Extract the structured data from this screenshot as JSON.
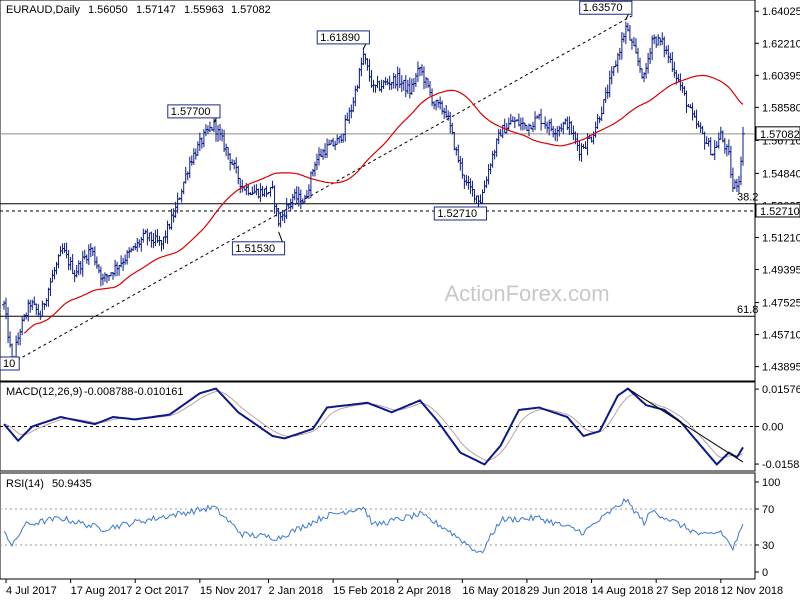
{
  "header": {
    "symbol": "EURAUD,Daily",
    "open": "1.56050",
    "high": "1.57147",
    "low": "1.55963",
    "close": "1.57082"
  },
  "watermark": "ActionForex.com",
  "colors": {
    "candle": "#0a1a8a",
    "ma": "#dd0000",
    "macd": "#0a1a8a",
    "signal": "#c0a0a0",
    "rsi": "#3a78d8",
    "frame": "#000000",
    "hline": "#000000"
  },
  "chart_data": [
    {
      "type": "candlestick",
      "name": "EURAUD,Daily",
      "x_ticks": [
        "4 Jul 2017",
        "17 Aug 2017",
        "2 Oct 2017",
        "15 Nov 2017",
        "2 Jan 2018",
        "15 Feb 2018",
        "2 Apr 2018",
        "16 May 2018",
        "29 Jun 2018",
        "14 Aug 2018",
        "27 Sep 2018",
        "12 Nov 2018"
      ],
      "y_ticks": [
        "1.64025",
        "1.62210",
        "1.60395",
        "1.58580",
        "1.56710",
        "1.54840",
        "1.53025",
        "1.51210",
        "1.49395",
        "1.47525",
        "1.45710",
        "1.43895"
      ],
      "ylim": [
        1.4325,
        1.6449
      ],
      "last_price_label": "1.57082",
      "support_label": "1.52710",
      "swing_labels": [
        {
          "text": "1.57700",
          "date": "2017-11-24",
          "price": 1.577
        },
        {
          "text": "1.51530",
          "date": "2018-01-09",
          "price": 1.5153
        },
        {
          "text": "1.61890",
          "date": "2018-03-08",
          "price": 1.6189
        },
        {
          "text": "1.52710",
          "date": "2018-05-29",
          "price": 1.5271
        },
        {
          "text": "1.63570",
          "date": "2018-09-06",
          "price": 1.6357
        },
        {
          "text": "10",
          "date": "2017-07-07",
          "price": 1.441
        }
      ],
      "fib_levels": [
        {
          "label": "38.2",
          "price": 1.5312
        },
        {
          "label": "61.8",
          "price": 1.4675
        }
      ],
      "horizontal_lines": [
        1.5708,
        1.5312,
        1.5271,
        1.4675
      ],
      "trendline": {
        "from": {
          "date": "2017-07-07",
          "price": 1.441
        },
        "to": {
          "date": "2018-09-06",
          "price": 1.6357
        }
      },
      "anchors": [
        {
          "date": "2017-07-03",
          "price": 1.474
        },
        {
          "date": "2017-07-07",
          "price": 1.441
        },
        {
          "date": "2017-07-13",
          "price": 1.46
        },
        {
          "date": "2017-07-20",
          "price": 1.475
        },
        {
          "date": "2017-07-27",
          "price": 1.468
        },
        {
          "date": "2017-08-03",
          "price": 1.487
        },
        {
          "date": "2017-08-11",
          "price": 1.505
        },
        {
          "date": "2017-08-21",
          "price": 1.492
        },
        {
          "date": "2017-08-31",
          "price": 1.506
        },
        {
          "date": "2017-09-08",
          "price": 1.488
        },
        {
          "date": "2017-09-18",
          "price": 1.495
        },
        {
          "date": "2017-09-28",
          "price": 1.504
        },
        {
          "date": "2017-10-09",
          "price": 1.513
        },
        {
          "date": "2017-10-19",
          "price": 1.508
        },
        {
          "date": "2017-10-30",
          "price": 1.528
        },
        {
          "date": "2017-11-08",
          "price": 1.555
        },
        {
          "date": "2017-11-17",
          "price": 1.569
        },
        {
          "date": "2017-11-24",
          "price": 1.576
        },
        {
          "date": "2017-12-04",
          "price": 1.562
        },
        {
          "date": "2017-12-14",
          "price": 1.541
        },
        {
          "date": "2017-12-22",
          "price": 1.538
        },
        {
          "date": "2018-01-04",
          "price": 1.538
        },
        {
          "date": "2018-01-09",
          "price": 1.521
        },
        {
          "date": "2018-01-18",
          "price": 1.535
        },
        {
          "date": "2018-01-26",
          "price": 1.533
        },
        {
          "date": "2018-02-02",
          "price": 1.555
        },
        {
          "date": "2018-02-09",
          "price": 1.562
        },
        {
          "date": "2018-02-20",
          "price": 1.567
        },
        {
          "date": "2018-02-28",
          "price": 1.585
        },
        {
          "date": "2018-03-08",
          "price": 1.615
        },
        {
          "date": "2018-03-15",
          "price": 1.596
        },
        {
          "date": "2018-03-22",
          "price": 1.599
        },
        {
          "date": "2018-04-02",
          "price": 1.602
        },
        {
          "date": "2018-04-10",
          "price": 1.595
        },
        {
          "date": "2018-04-17",
          "price": 1.608
        },
        {
          "date": "2018-04-26",
          "price": 1.588
        },
        {
          "date": "2018-05-04",
          "price": 1.583
        },
        {
          "date": "2018-05-11",
          "price": 1.56
        },
        {
          "date": "2018-05-18",
          "price": 1.542
        },
        {
          "date": "2018-05-29",
          "price": 1.533
        },
        {
          "date": "2018-06-05",
          "price": 1.555
        },
        {
          "date": "2018-06-12",
          "price": 1.572
        },
        {
          "date": "2018-06-20",
          "price": 1.578
        },
        {
          "date": "2018-06-29",
          "price": 1.575
        },
        {
          "date": "2018-07-09",
          "price": 1.58
        },
        {
          "date": "2018-07-18",
          "price": 1.573
        },
        {
          "date": "2018-07-27",
          "price": 1.577
        },
        {
          "date": "2018-08-06",
          "price": 1.562
        },
        {
          "date": "2018-08-14",
          "price": 1.569
        },
        {
          "date": "2018-08-22",
          "price": 1.588
        },
        {
          "date": "2018-08-30",
          "price": 1.611
        },
        {
          "date": "2018-09-06",
          "price": 1.631
        },
        {
          "date": "2018-09-12",
          "price": 1.618
        },
        {
          "date": "2018-09-19",
          "price": 1.602
        },
        {
          "date": "2018-09-25",
          "price": 1.625
        },
        {
          "date": "2018-10-02",
          "price": 1.622
        },
        {
          "date": "2018-10-09",
          "price": 1.61
        },
        {
          "date": "2018-10-16",
          "price": 1.595
        },
        {
          "date": "2018-10-23",
          "price": 1.58
        },
        {
          "date": "2018-10-30",
          "price": 1.57
        },
        {
          "date": "2018-11-06",
          "price": 1.56
        },
        {
          "date": "2018-11-12",
          "price": 1.57
        },
        {
          "date": "2018-11-16",
          "price": 1.558
        },
        {
          "date": "2018-11-20",
          "price": 1.54
        },
        {
          "date": "2018-11-23",
          "price": 1.545
        },
        {
          "date": "2018-11-27",
          "price": 1.5708
        }
      ]
    },
    {
      "type": "line",
      "name": "MACD(12,26,9)",
      "values_text": [
        "-0.008788",
        "-0.010161"
      ],
      "y_ticks": [
        "0.015762",
        "0.00",
        "-0.015834"
      ],
      "ylim": [
        -0.0175,
        0.0175
      ],
      "zero_line": 0,
      "macd_anchors": [
        {
          "date": "2017-07-03",
          "value": 0.001
        },
        {
          "date": "2017-07-12",
          "value": -0.006
        },
        {
          "date": "2017-07-22",
          "value": 0.0
        },
        {
          "date": "2017-08-10",
          "value": 0.004
        },
        {
          "date": "2017-09-04",
          "value": 0.001
        },
        {
          "date": "2017-09-15",
          "value": 0.004
        },
        {
          "date": "2017-10-02",
          "value": 0.003
        },
        {
          "date": "2017-10-25",
          "value": 0.005
        },
        {
          "date": "2017-11-15",
          "value": 0.014
        },
        {
          "date": "2017-11-27",
          "value": 0.016
        },
        {
          "date": "2017-12-12",
          "value": 0.006
        },
        {
          "date": "2018-01-04",
          "value": -0.004
        },
        {
          "date": "2018-01-12",
          "value": -0.005
        },
        {
          "date": "2018-02-01",
          "value": -0.001
        },
        {
          "date": "2018-02-12",
          "value": 0.008
        },
        {
          "date": "2018-03-12",
          "value": 0.01
        },
        {
          "date": "2018-03-28",
          "value": 0.006
        },
        {
          "date": "2018-04-17",
          "value": 0.011
        },
        {
          "date": "2018-04-30",
          "value": 0.002
        },
        {
          "date": "2018-05-15",
          "value": -0.011
        },
        {
          "date": "2018-05-31",
          "value": -0.016
        },
        {
          "date": "2018-06-12",
          "value": -0.008
        },
        {
          "date": "2018-06-25",
          "value": 0.007
        },
        {
          "date": "2018-07-09",
          "value": 0.008
        },
        {
          "date": "2018-07-27",
          "value": 0.004
        },
        {
          "date": "2018-08-08",
          "value": -0.004
        },
        {
          "date": "2018-08-20",
          "value": -0.002
        },
        {
          "date": "2018-08-31",
          "value": 0.013
        },
        {
          "date": "2018-09-07",
          "value": 0.016
        },
        {
          "date": "2018-09-20",
          "value": 0.009
        },
        {
          "date": "2018-10-03",
          "value": 0.007
        },
        {
          "date": "2018-10-15",
          "value": 0.002
        },
        {
          "date": "2018-10-25",
          "value": -0.006
        },
        {
          "date": "2018-11-08",
          "value": -0.016
        },
        {
          "date": "2018-11-16",
          "value": -0.011
        },
        {
          "date": "2018-11-22",
          "value": -0.013
        },
        {
          "date": "2018-11-27",
          "value": -0.0088
        }
      ],
      "trendline": {
        "from": {
          "date": "2018-09-07",
          "value": 0.016
        },
        "to": {
          "date": "2018-11-27",
          "value": -0.015
        }
      }
    },
    {
      "type": "line",
      "name": "RSI(14)",
      "values_text": [
        "50.9435"
      ],
      "y_ticks": [
        "100",
        "70",
        "30",
        "0"
      ],
      "ylim": [
        0,
        100
      ],
      "levels": [
        70,
        30
      ],
      "rsi_anchors": [
        {
          "date": "2017-07-03",
          "value": 48
        },
        {
          "date": "2017-07-07",
          "value": 28
        },
        {
          "date": "2017-07-17",
          "value": 52
        },
        {
          "date": "2017-08-10",
          "value": 60
        },
        {
          "date": "2017-09-08",
          "value": 48
        },
        {
          "date": "2017-10-10",
          "value": 58
        },
        {
          "date": "2017-11-24",
          "value": 72
        },
        {
          "date": "2017-12-14",
          "value": 42
        },
        {
          "date": "2018-01-09",
          "value": 38
        },
        {
          "date": "2018-02-09",
          "value": 62
        },
        {
          "date": "2018-03-08",
          "value": 72
        },
        {
          "date": "2018-03-15",
          "value": 52
        },
        {
          "date": "2018-04-17",
          "value": 64
        },
        {
          "date": "2018-05-04",
          "value": 48
        },
        {
          "date": "2018-05-29",
          "value": 20
        },
        {
          "date": "2018-06-12",
          "value": 58
        },
        {
          "date": "2018-07-09",
          "value": 60
        },
        {
          "date": "2018-08-08",
          "value": 44
        },
        {
          "date": "2018-09-06",
          "value": 80
        },
        {
          "date": "2018-09-19",
          "value": 55
        },
        {
          "date": "2018-09-25",
          "value": 68
        },
        {
          "date": "2018-10-30",
          "value": 40
        },
        {
          "date": "2018-11-12",
          "value": 45
        },
        {
          "date": "2018-11-20",
          "value": 26
        },
        {
          "date": "2018-11-27",
          "value": 51
        }
      ]
    }
  ]
}
